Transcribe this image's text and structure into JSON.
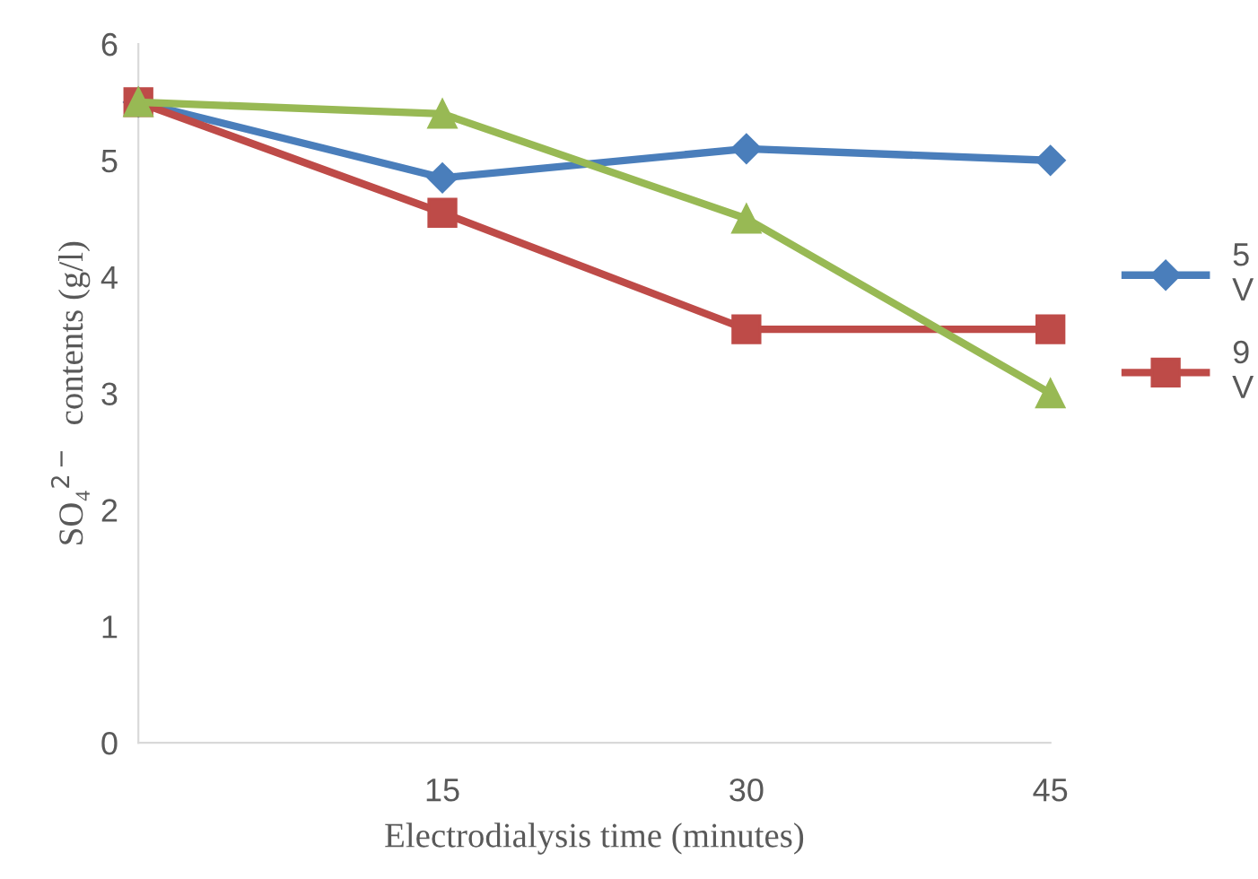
{
  "chart_data": {
    "type": "line",
    "xlabel": "Electrodialysis time (minutes)",
    "ylabel": "SO₄$^{2−}$  contents (g/l)",
    "categories": [
      null,
      "15",
      "30",
      "45"
    ],
    "series": [
      {
        "name": "5\nV",
        "color": "#4a7ebb",
        "marker": "diamond",
        "values": [
          5.5,
          4.85,
          5.1,
          5.0
        ]
      },
      {
        "name": "9\nV",
        "color": "#be4b48",
        "marker": "square",
        "values": [
          5.5,
          4.55,
          3.55,
          3.55
        ]
      },
      {
        "color": "#98b954",
        "marker": "triangle",
        "values": [
          5.5,
          5.4,
          4.5,
          3.0
        ]
      }
    ],
    "ylim": [
      0,
      6
    ],
    "yticks": [
      0,
      1,
      2,
      3,
      4,
      5,
      6
    ],
    "grid": false,
    "legend": "right",
    "line_style": "solid"
  }
}
